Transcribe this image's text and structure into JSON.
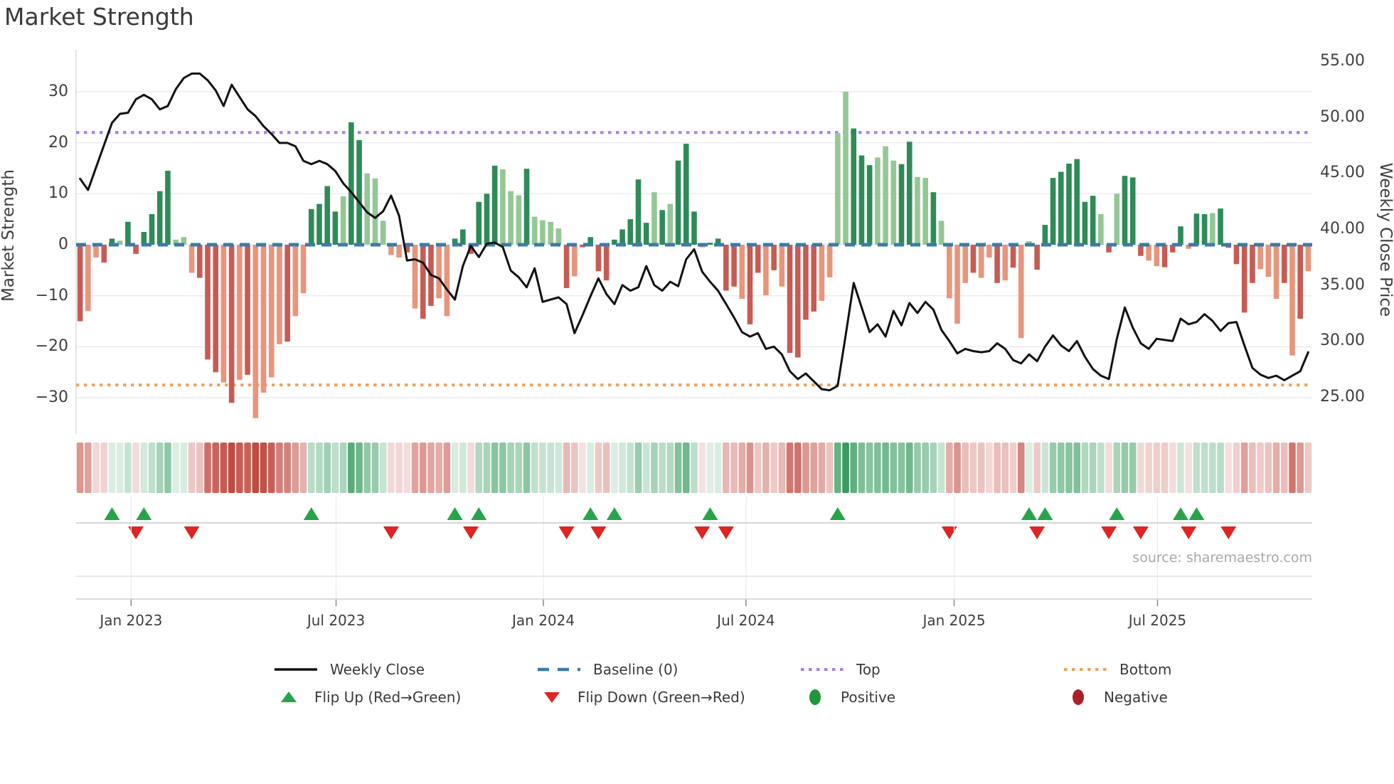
{
  "title": "Market Strength",
  "source_note": "source: sharemaestro.com",
  "axes": {
    "left_title": "Market Strength",
    "right_title": "Weekly Close Price",
    "left_ticks": [
      30,
      20,
      10,
      0,
      -10,
      -20,
      -30
    ],
    "right_ticks": [
      "55.00",
      "50.00",
      "45.00",
      "40.00",
      "35.00",
      "30.00",
      "25.00"
    ],
    "x_ticks": [
      {
        "label": "Jan 2023",
        "pos": 6.4
      },
      {
        "label": "Jul 2023",
        "pos": 32.1
      },
      {
        "label": "Jan 2024",
        "pos": 58.1
      },
      {
        "label": "Jul 2024",
        "pos": 83.5
      },
      {
        "label": "Jan 2025",
        "pos": 109.6
      },
      {
        "label": "Jul 2025",
        "pos": 135.1
      }
    ]
  },
  "colors": {
    "bar_pos_strong": "#2e8b57",
    "bar_pos_soft": "#95c795",
    "bar_neg_strong": "#c75b53",
    "bar_neg_soft": "#e8957b",
    "heat_pos": "#379b5f",
    "heat_neg": "#c14a41",
    "baseline": "#3a7ca8",
    "top_line": "#a97ee6",
    "bottom_line": "#f0a25c",
    "price_line": "#111111",
    "flip_up": "#27a449",
    "flip_down": "#df2423",
    "positive_dot": "#1e9639",
    "negative_dot": "#aa2028",
    "grid": "#e9e9f0",
    "spine": "#cfcfcf"
  },
  "chart_data": {
    "type": "combo (bar + line + heatmap + flip markers)",
    "x_unit": "weeks",
    "n_weeks": 155,
    "left_axis_range": [
      -36,
      36
    ],
    "right_axis_range": [
      25,
      55
    ],
    "baseline": 0,
    "top_level": 22,
    "bottom_level": -27.5,
    "strength": [
      -15,
      -13,
      -2.5,
      -3.5,
      1.2,
      0.8,
      4.5,
      -1.8,
      2.5,
      6,
      10.5,
      14.5,
      1,
      1.5,
      -5.5,
      -6.5,
      -22.5,
      -25,
      -27,
      -31,
      -26.5,
      -25.5,
      -34,
      -29,
      -26,
      -19.5,
      -19,
      -14,
      -9.5,
      7,
      8,
      11.5,
      6.5,
      9.5,
      24,
      20.5,
      14,
      13,
      4.7,
      -2,
      -2.5,
      -1.5,
      -12.5,
      -14.5,
      -12,
      -10.5,
      -14,
      1.2,
      3,
      -1.8,
      8.4,
      10,
      15.5,
      14.8,
      10.5,
      9.7,
      14.9,
      5.5,
      4.8,
      4.5,
      3.2,
      -8.5,
      -6.2,
      -0.5,
      1.5,
      -5.2,
      -7,
      1,
      3,
      5,
      12.8,
      4.3,
      10.3,
      6.8,
      8,
      16.5,
      19.8,
      6.5,
      -0.5,
      0.4,
      1.2,
      -9,
      -8.2,
      -10.6,
      -15.6,
      -5.5,
      -9.9,
      -5,
      -8.2,
      -21.2,
      -22.1,
      -14.7,
      -13.1,
      -11,
      -6.4,
      21.9,
      30,
      22.8,
      17.5,
      15.6,
      17.1,
      19.3,
      16.5,
      15.8,
      20.2,
      13.3,
      13.1,
      10.3,
      4.7,
      -10.5,
      -15.5,
      -7.5,
      -5.5,
      -6.5,
      -2.5,
      -7.5,
      -7,
      -4.5,
      -18.3,
      0.7,
      -4.9,
      3.9,
      13.1,
      14.3,
      15.9,
      16.8,
      8.4,
      9.6,
      6,
      -1.5,
      10,
      13.5,
      13.2,
      -2.2,
      -3.1,
      -4.2,
      -4.4,
      -1.5,
      3.6,
      -0.8,
      6.1,
      6,
      6.2,
      7.1,
      -0.6,
      -3.8,
      -13.3,
      -7.5,
      -4.8,
      -6.3,
      -10.6,
      -7.5,
      -21.7,
      -14.5,
      -5.2
    ],
    "strength_shade": "dllddldddd",
    "strength_shade_full": "dllddlddddddllldddldldlllldllddddlddllllldlddllddddddllldlllldldddddddddldldddlddddlddldlddddlllldddlllddlldlllldlldldllddddddddldldddlldddlddldddddllldldll",
    "price": [
      44.5,
      43.5,
      45.5,
      47.5,
      49.5,
      50.3,
      50.4,
      51.6,
      52.0,
      51.6,
      50.7,
      51.0,
      52.5,
      53.5,
      53.9,
      53.9,
      53.3,
      52.4,
      51.0,
      52.9,
      51.8,
      50.7,
      50.1,
      49.2,
      48.5,
      47.7,
      47.7,
      47.4,
      46.1,
      45.8,
      46.1,
      45.8,
      45.2,
      44.1,
      43.3,
      42.4,
      41.5,
      41.0,
      41.6,
      43.0,
      41.2,
      37.2,
      37.3,
      37.0,
      35.9,
      35.6,
      34.6,
      33.7,
      36.7,
      38.5,
      37.5,
      38.7,
      38.8,
      38.4,
      36.3,
      35.7,
      34.8,
      36.5,
      33.5,
      33.7,
      33.9,
      33.3,
      30.7,
      32.3,
      34.0,
      35.6,
      34.2,
      33.3,
      35.0,
      34.5,
      34.8,
      36.7,
      35.0,
      34.5,
      35.3,
      34.9,
      37.3,
      38.2,
      36.2,
      35.3,
      34.5,
      33.3,
      32.1,
      30.8,
      30.4,
      30.7,
      29.3,
      29.5,
      28.8,
      27.3,
      26.6,
      27.1,
      26.4,
      25.7,
      25.6,
      26.0,
      30.5,
      35.2,
      33.0,
      30.8,
      31.5,
      30.4,
      32.7,
      31.4,
      33.4,
      32.5,
      33.5,
      32.8,
      31.0,
      30.0,
      28.9,
      29.3,
      29.1,
      29.0,
      29.1,
      29.8,
      29.3,
      28.3,
      28.0,
      28.8,
      28.2,
      29.5,
      30.5,
      29.6,
      29.1,
      30.0,
      28.6,
      27.5,
      26.9,
      26.6,
      30.2,
      33.0,
      31.2,
      29.8,
      29.3,
      30.2,
      30.1,
      30.0,
      32.0,
      31.5,
      31.7,
      32.4,
      31.8,
      30.9,
      31.6,
      31.7,
      29.6,
      27.6,
      27.0,
      26.7,
      26.9,
      26.5,
      26.9,
      27.3,
      29.0
    ],
    "series_names": {
      "bars": "Market Strength",
      "line": "Weekly Close",
      "heatmap": "weekly strength heat strip",
      "markers": "flip up / flip down"
    }
  },
  "legend": {
    "row1": [
      {
        "label": "Weekly Close",
        "swatch": "line-black"
      },
      {
        "label": "Baseline (0)",
        "swatch": "dashes-blue"
      },
      {
        "label": "Top",
        "swatch": "dots-purple"
      },
      {
        "label": "Bottom",
        "swatch": "dots-orange"
      }
    ],
    "row2": [
      {
        "label": "Flip Up (Red→Green)",
        "swatch": "triangle-up-green"
      },
      {
        "label": "Flip Down (Green→Red)",
        "swatch": "triangle-down-red"
      },
      {
        "label": "Positive",
        "swatch": "dot-green"
      },
      {
        "label": "Negative",
        "swatch": "dot-dark-red"
      }
    ]
  }
}
